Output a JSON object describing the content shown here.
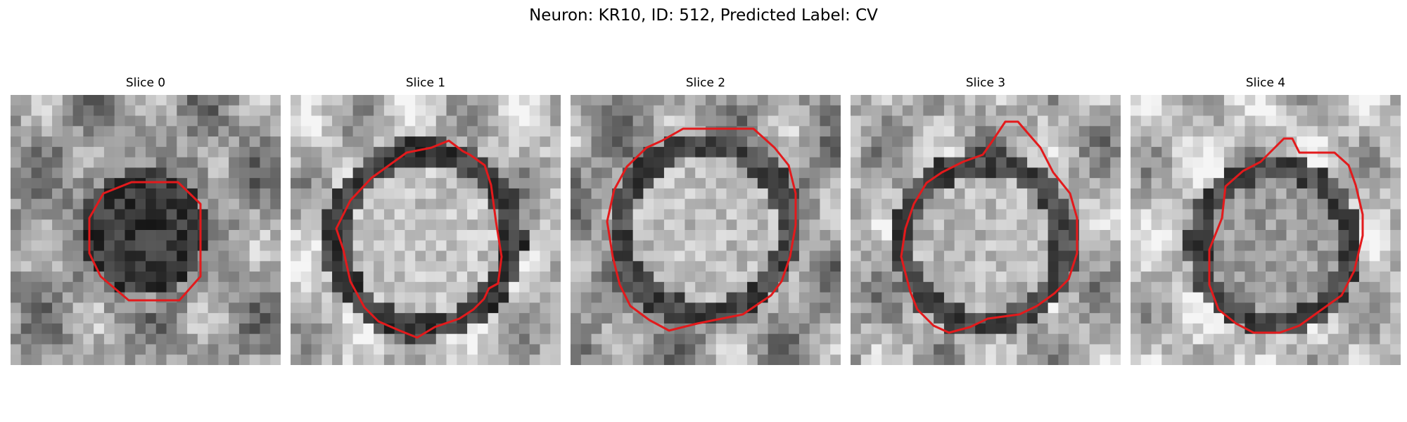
{
  "figure": {
    "title": "Neuron: KR10, ID: 512, Predicted Label: CV",
    "panels": [
      {
        "title": "Slice 0"
      },
      {
        "title": "Slice 1"
      },
      {
        "title": "Slice 2"
      },
      {
        "title": "Slice 3"
      },
      {
        "title": "Slice 4"
      }
    ],
    "outline_color": "#e31a1c",
    "colormap": "grayscale",
    "image_description": "grayscale electron-microscopy style image patch with a roughly circular cell body outlined in red"
  }
}
